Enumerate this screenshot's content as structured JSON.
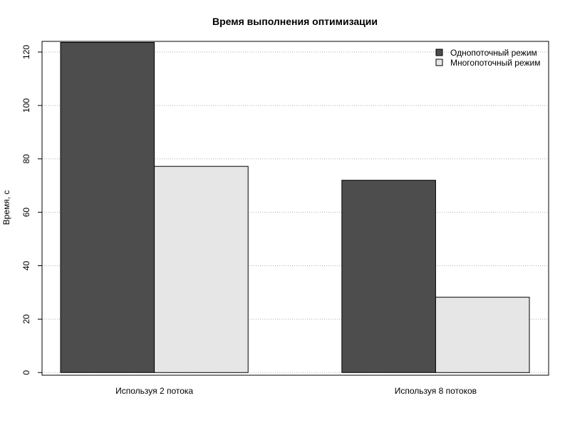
{
  "chart_data": {
    "type": "bar",
    "title": "Время выполнения оптимизации",
    "xlabel": "",
    "ylabel": "Время, с",
    "categories": [
      "Используя 2 потока",
      "Используя 8 потоков"
    ],
    "series": [
      {
        "name": "Однопоточный режим",
        "color": "#4d4d4d",
        "values": [
          123.6,
          72
        ]
      },
      {
        "name": "Многопоточный режим",
        "color": "#e6e6e6",
        "values": [
          77.2,
          28.2
        ]
      }
    ],
    "yticks": [
      0,
      20,
      40,
      60,
      80,
      100,
      120
    ],
    "ylim": [
      -1,
      124
    ],
    "grid": true,
    "legend_position": "top-right"
  }
}
